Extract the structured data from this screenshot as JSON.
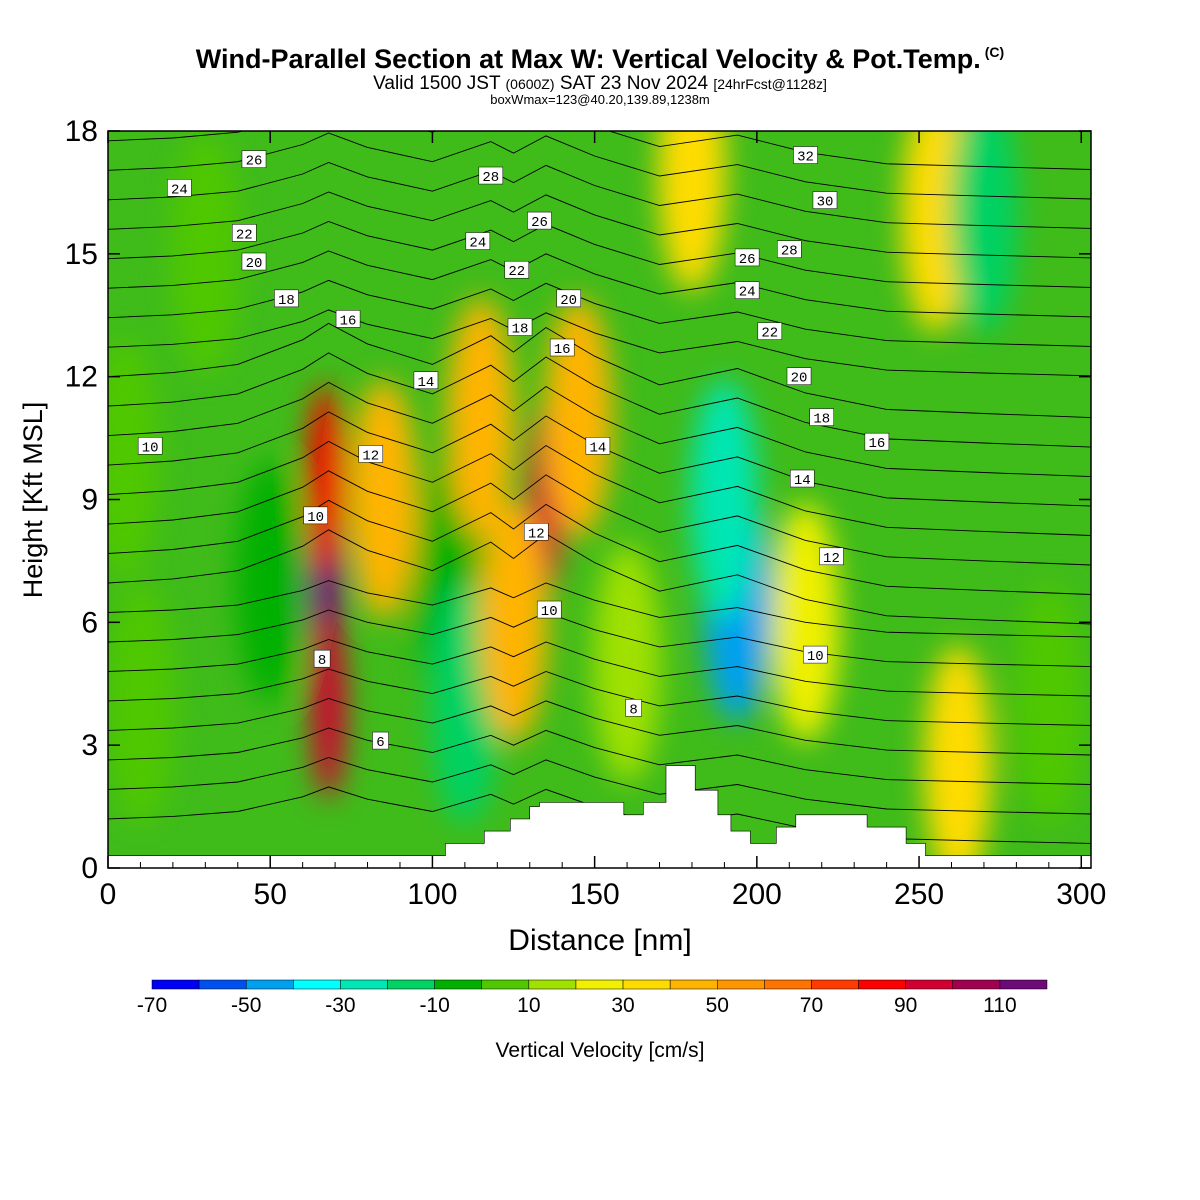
{
  "header": {
    "title": "Wind-Parallel Section at Max W: Vertical Velocity & Pot.Temp.",
    "copyright": "(C)",
    "valid_prefix": "Valid 1500 JST",
    "valid_utc": "(0600Z)",
    "valid_date": "SAT 23 Nov 2024",
    "forecast": "[24hrFcst@1128z]",
    "box_info": "boxWmax=123@40.20,139.89,1238m"
  },
  "chart_data": {
    "type": "heatmap",
    "xlabel": "Distance [nm]",
    "ylabel": "Height [Kft MSL]",
    "xlim": [
      0,
      303
    ],
    "ylim": [
      0,
      18
    ],
    "x_ticks": [
      "0",
      "50",
      "100",
      "150",
      "200",
      "250",
      "300"
    ],
    "y_ticks": [
      "0",
      "3",
      "6",
      "9",
      "12",
      "15",
      "18"
    ],
    "colorbar": {
      "label": "Vertical Velocity [cm/s]",
      "bounds": [
        -70,
        -60,
        -50,
        -40,
        -30,
        -20,
        -10,
        0,
        10,
        20,
        30,
        40,
        50,
        60,
        70,
        80,
        90,
        100,
        110,
        120
      ],
      "tick_labels": [
        "-70",
        "-50",
        "-30",
        "-10",
        "10",
        "30",
        "50",
        "70",
        "90",
        "110"
      ],
      "colors": [
        "#0000f5",
        "#0050f0",
        "#00a0f0",
        "#00ffff",
        "#00e6b4",
        "#00d264",
        "#00b000",
        "#50c800",
        "#a0e100",
        "#f0f000",
        "#ffdc00",
        "#ffb400",
        "#ff9600",
        "#ff7300",
        "#ff3c00",
        "#ff0000",
        "#d20032",
        "#a00050",
        "#6e0a78"
      ]
    },
    "vertical_velocity_cells": [
      {
        "x": 5,
        "z": 10,
        "w": 5
      },
      {
        "x": 10,
        "z": 4,
        "w": 0
      },
      {
        "x": 30,
        "z": 15,
        "w": 5
      },
      {
        "x": 50,
        "z": 7,
        "w": -5
      },
      {
        "x": 67,
        "z": 7,
        "w": 115
      },
      {
        "x": 68,
        "z": 4,
        "w": 95
      },
      {
        "x": 67,
        "z": 9.5,
        "w": 85
      },
      {
        "x": 85,
        "z": 9,
        "w": 45
      },
      {
        "x": 105,
        "z": 7,
        "w": -5
      },
      {
        "x": 110,
        "z": 4,
        "w": -15
      },
      {
        "x": 115,
        "z": 11,
        "w": 40
      },
      {
        "x": 135,
        "z": 9,
        "w": 95
      },
      {
        "x": 125,
        "z": 6,
        "w": 40
      },
      {
        "x": 145,
        "z": 11,
        "w": 45
      },
      {
        "x": 160,
        "z": 5,
        "w": 15
      },
      {
        "x": 180,
        "z": 17,
        "w": 35
      },
      {
        "x": 194,
        "z": 6.5,
        "w": -45
      },
      {
        "x": 190,
        "z": 9,
        "w": -25
      },
      {
        "x": 215,
        "z": 6,
        "w": 20
      },
      {
        "x": 255,
        "z": 16,
        "w": 35
      },
      {
        "x": 262,
        "z": 2.5,
        "w": 30
      },
      {
        "x": 270,
        "z": 16,
        "w": -15
      },
      {
        "x": 290,
        "z": 4,
        "w": 0
      }
    ],
    "theta_contour_labels": [
      {
        "text": "26",
        "x": 45,
        "z": 17.3
      },
      {
        "text": "24",
        "x": 22,
        "z": 16.6
      },
      {
        "text": "22",
        "x": 42,
        "z": 15.5
      },
      {
        "text": "20",
        "x": 45,
        "z": 14.8
      },
      {
        "text": "18",
        "x": 55,
        "z": 13.9
      },
      {
        "text": "16",
        "x": 74,
        "z": 13.4
      },
      {
        "text": "14",
        "x": 98,
        "z": 11.9
      },
      {
        "text": "12",
        "x": 81,
        "z": 10.1
      },
      {
        "text": "10",
        "x": 13,
        "z": 10.3
      },
      {
        "text": "10",
        "x": 64,
        "z": 8.6
      },
      {
        "text": "8",
        "x": 66,
        "z": 5.1
      },
      {
        "text": "6",
        "x": 84,
        "z": 3.1
      },
      {
        "text": "28",
        "x": 118,
        "z": 16.9
      },
      {
        "text": "26",
        "x": 133,
        "z": 15.8
      },
      {
        "text": "24",
        "x": 114,
        "z": 15.3
      },
      {
        "text": "22",
        "x": 126,
        "z": 14.6
      },
      {
        "text": "18",
        "x": 127,
        "z": 13.2
      },
      {
        "text": "20",
        "x": 142,
        "z": 13.9
      },
      {
        "text": "16",
        "x": 140,
        "z": 12.7
      },
      {
        "text": "14",
        "x": 151,
        "z": 10.3
      },
      {
        "text": "12",
        "x": 132,
        "z": 8.2
      },
      {
        "text": "10",
        "x": 136,
        "z": 6.3
      },
      {
        "text": "8",
        "x": 162,
        "z": 3.9
      },
      {
        "text": "32",
        "x": 215,
        "z": 17.4
      },
      {
        "text": "30",
        "x": 221,
        "z": 16.3
      },
      {
        "text": "28",
        "x": 210,
        "z": 15.1
      },
      {
        "text": "26",
        "x": 197,
        "z": 14.9
      },
      {
        "text": "24",
        "x": 197,
        "z": 14.1
      },
      {
        "text": "22",
        "x": 204,
        "z": 13.1
      },
      {
        "text": "20",
        "x": 213,
        "z": 12.0
      },
      {
        "text": "18",
        "x": 220,
        "z": 11.0
      },
      {
        "text": "16",
        "x": 237,
        "z": 10.4
      },
      {
        "text": "14",
        "x": 214,
        "z": 9.5
      },
      {
        "text": "12",
        "x": 223,
        "z": 7.6
      },
      {
        "text": "10",
        "x": 218,
        "z": 5.2
      }
    ],
    "terrain_profile": {
      "x": [
        0,
        100,
        104,
        104,
        116,
        116,
        124,
        124,
        130,
        130,
        133,
        133,
        159,
        159,
        165,
        165,
        172,
        172,
        181,
        181,
        188,
        188,
        192,
        192,
        198,
        198,
        202,
        202,
        206,
        206,
        212,
        212,
        234,
        234,
        246,
        246,
        252,
        252,
        303
      ],
      "z": [
        0.3,
        0.3,
        0.3,
        0.6,
        0.6,
        0.9,
        0.9,
        1.2,
        1.2,
        1.5,
        1.5,
        1.6,
        1.6,
        1.3,
        1.3,
        1.6,
        1.6,
        2.5,
        2.5,
        1.9,
        1.9,
        1.3,
        1.3,
        0.9,
        0.9,
        0.6,
        0.6,
        0.6,
        0.6,
        1.0,
        1.0,
        1.3,
        1.3,
        1.0,
        1.0,
        0.6,
        0.6,
        0.3,
        0.3
      ]
    }
  }
}
